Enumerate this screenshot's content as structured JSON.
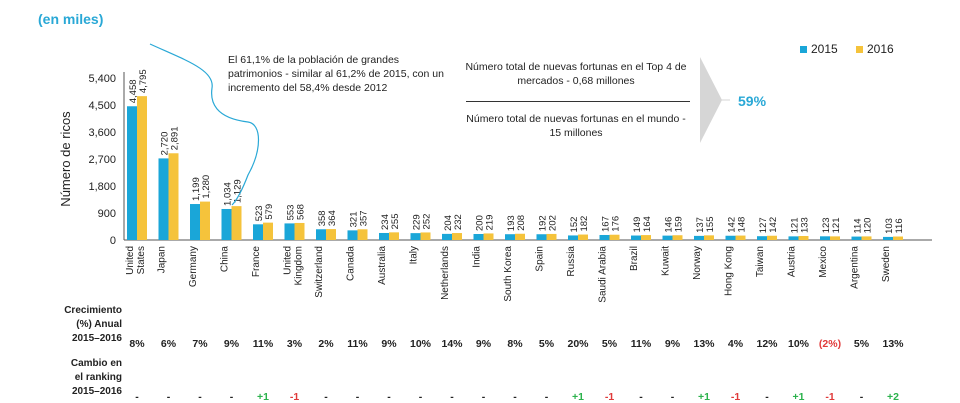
{
  "unit_label": "(en miles)",
  "legend": [
    {
      "name": "2015",
      "color": "#1aa6d8"
    },
    {
      "name": "2016",
      "color": "#f5c33b"
    }
  ],
  "callouts": {
    "share_text": "El 61,1% de la población de grandes patrimonios - similar al 61,2% de 2015, con un incremento del 58,4% desde 2012",
    "top4_text": "Número total de nuevas fortunas en el Top 4 de mercados - 0,68 millones",
    "world_text": "Número total de nuevas fortunas en el mundo - 15 millones",
    "share_pct": "59%"
  },
  "row_labels": {
    "growth": [
      "Crecimiento",
      "(%) Anual",
      "2015–2016"
    ],
    "rank": [
      "Cambio en",
      "el ranking",
      "2015–2016"
    ]
  },
  "chart_data": {
    "type": "bar",
    "ylabel": "Número de ricos",
    "yticks": [
      0,
      900,
      1800,
      2700,
      3600,
      4500,
      5400
    ],
    "ytick_labels": [
      "0",
      "900",
      "1,800",
      "2,700",
      "3,600",
      "4,500",
      "5,400"
    ],
    "ylim": [
      0,
      5400
    ],
    "grid": false,
    "legend_position": "top-right",
    "categories": [
      "United States",
      "Japan",
      "Germany",
      "China",
      "France",
      "United Kingdom",
      "Switzerland",
      "Canada",
      "Australia",
      "Italy",
      "Netherlands",
      "India",
      "South Korea",
      "Spain",
      "Russia",
      "Saudi Arabia",
      "Brazil",
      "Kuwait",
      "Norway",
      "Hong Kong",
      "Taiwan",
      "Austria",
      "Mexico",
      "Argentina",
      "Sweden"
    ],
    "category_lines": [
      [
        "United",
        "States"
      ],
      [
        "Japan"
      ],
      [
        "Germany"
      ],
      [
        "China"
      ],
      [
        "France"
      ],
      [
        "United",
        "Kingdom"
      ],
      [
        "Switzerland"
      ],
      [
        "Canada"
      ],
      [
        "Australia"
      ],
      [
        "Italy"
      ],
      [
        "Netherlands"
      ],
      [
        "India"
      ],
      [
        "South Korea"
      ],
      [
        "Spain"
      ],
      [
        "Russia"
      ],
      [
        "Saudi Arabia"
      ],
      [
        "Brazil"
      ],
      [
        "Kuwait"
      ],
      [
        "Norway"
      ],
      [
        "Hong Kong"
      ],
      [
        "Taiwan"
      ],
      [
        "Austria"
      ],
      [
        "Mexico"
      ],
      [
        "Argentina"
      ],
      [
        "Sweden"
      ]
    ],
    "series": [
      {
        "name": "2015",
        "values": [
          4458,
          2720,
          1199,
          1034,
          523,
          553,
          358,
          321,
          234,
          229,
          204,
          200,
          193,
          192,
          152,
          167,
          149,
          146,
          137,
          142,
          127,
          121,
          123,
          114,
          103
        ],
        "labels": [
          "4,458",
          "2,720",
          "1,199",
          "1,034",
          "523",
          "553",
          "358",
          "321",
          "234",
          "229",
          "204",
          "200",
          "193",
          "192",
          "152",
          "167",
          "149",
          "146",
          "137",
          "142",
          "127",
          "121",
          "123",
          "114",
          "103"
        ]
      },
      {
        "name": "2016",
        "values": [
          4795,
          2891,
          1280,
          1129,
          579,
          568,
          364,
          357,
          255,
          252,
          232,
          219,
          208,
          202,
          182,
          176,
          164,
          159,
          155,
          148,
          142,
          133,
          121,
          120,
          116
        ],
        "labels": [
          "4,795",
          "2,891",
          "1,280",
          "1,129",
          "579",
          "568",
          "364",
          "357",
          "255",
          "252",
          "232",
          "219",
          "208",
          "202",
          "182",
          "176",
          "164",
          "159",
          "155",
          "148",
          "142",
          "133",
          "121",
          "120",
          "116"
        ]
      }
    ],
    "growth": [
      "8%",
      "6%",
      "7%",
      "9%",
      "11%",
      "3%",
      "2%",
      "11%",
      "9%",
      "10%",
      "14%",
      "9%",
      "8%",
      "5%",
      "20%",
      "5%",
      "11%",
      "9%",
      "13%",
      "4%",
      "12%",
      "10%",
      "(2%)",
      "5%",
      "13%"
    ],
    "growth_negative": [
      false,
      false,
      false,
      false,
      false,
      false,
      false,
      false,
      false,
      false,
      false,
      false,
      false,
      false,
      false,
      false,
      false,
      false,
      false,
      false,
      false,
      false,
      true,
      false,
      false
    ],
    "rank_change": [
      "-",
      "-",
      "-",
      "-",
      "+1",
      "-1",
      "-",
      "-",
      "-",
      "-",
      "-",
      "-",
      "-",
      "-",
      "+1",
      "-1",
      "-",
      "-",
      "+1",
      "-1",
      "-",
      "+1",
      "-1",
      "-",
      "+2"
    ]
  }
}
